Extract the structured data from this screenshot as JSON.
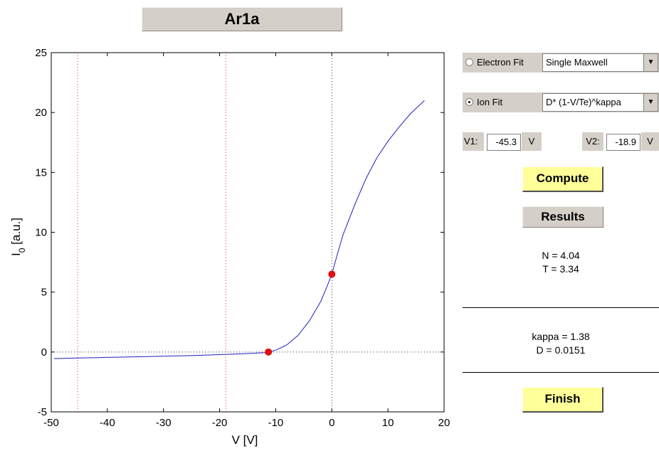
{
  "title": "Ar1a",
  "chart_data": {
    "type": "line",
    "xlabel": "V  [V]",
    "ylabel_main": "I",
    "ylabel_sub": "0",
    "ylabel_rest": " [a.u.]",
    "xlim": [
      -50,
      20
    ],
    "ylim": [
      -5,
      25
    ],
    "x_ticks": [
      -50,
      -40,
      -30,
      -20,
      -10,
      0,
      10,
      20
    ],
    "y_ticks": [
      -5,
      0,
      5,
      10,
      15,
      20,
      25
    ],
    "grid": false,
    "series": [
      {
        "color": "#1f1fbf",
        "x": [
          -49.5,
          -45,
          -40,
          -35,
          -30,
          -25,
          -20,
          -18.9,
          -15,
          -12,
          -11.3,
          -10,
          -8,
          -6,
          -4,
          -2,
          -1,
          0,
          1,
          2,
          4,
          6,
          8,
          10,
          12,
          14,
          16.5
        ],
        "y": [
          -0.55,
          -0.5,
          -0.45,
          -0.4,
          -0.35,
          -0.3,
          -0.22,
          -0.2,
          -0.13,
          -0.05,
          0.0,
          0.15,
          0.6,
          1.4,
          2.6,
          4.2,
          5.3,
          6.5,
          8.2,
          9.8,
          12.2,
          14.4,
          16.2,
          17.6,
          18.8,
          19.9,
          21.0
        ]
      }
    ],
    "vlines_red": [
      -45.3,
      -18.9
    ],
    "vline_dark": 0,
    "hline_dark": 0,
    "points": [
      {
        "x": -11.3,
        "y": 0.0
      },
      {
        "x": 0,
        "y": 6.5
      }
    ]
  },
  "controls": {
    "electron_fit_label": "Electron Fit",
    "electron_fit_selected": false,
    "electron_model": "Single Maxwell",
    "ion_fit_label": "Ion Fit",
    "ion_fit_selected": true,
    "ion_model": "D* (1-V/Te)^kappa",
    "v1_label": "V1:",
    "v1_value": "-45.3",
    "v1_unit": "V",
    "v2_label": "V2:",
    "v2_value": "-18.9",
    "v2_unit": "V",
    "compute_label": "Compute",
    "results_label": "Results",
    "n_result": "N = 4.04",
    "t_result": "T = 3.34",
    "kappa_result": "kappa = 1.38",
    "d_result": "D = 0.0151",
    "finish_label": "Finish",
    "arrow_glyph": "▼"
  }
}
